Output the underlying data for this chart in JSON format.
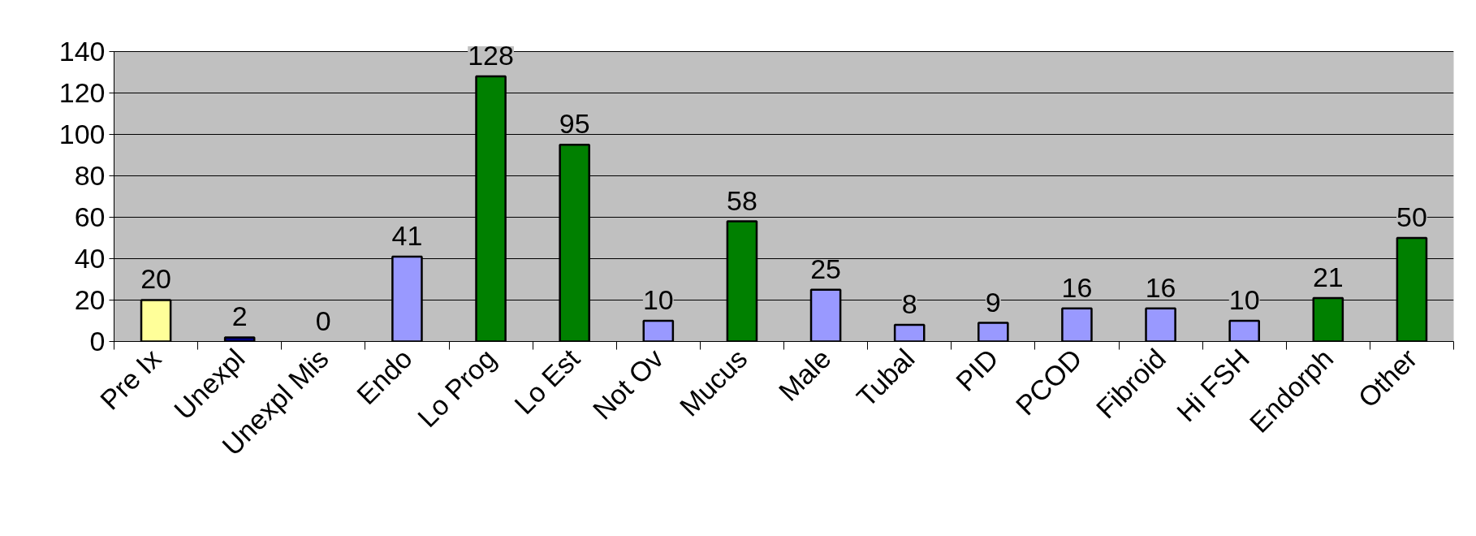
{
  "chart_data": {
    "type": "bar",
    "categories": [
      "Pre Ix",
      "Unexpl",
      "Unexpl Mis",
      "Endo",
      "Lo Prog",
      "Lo Est",
      "Not Ov",
      "Mucus",
      "Male",
      "Tubal",
      "PID",
      "PCOD",
      "Fibroid",
      "Hi FSH",
      "Endorph",
      "Other"
    ],
    "values": [
      20,
      2,
      0,
      41,
      128,
      95,
      10,
      58,
      25,
      8,
      9,
      16,
      16,
      10,
      21,
      50
    ],
    "colors": [
      "#ffff99",
      "#000080",
      "#9999ff",
      "#9999ff",
      "#008000",
      "#008000",
      "#9999ff",
      "#008000",
      "#9999ff",
      "#9999ff",
      "#9999ff",
      "#9999ff",
      "#9999ff",
      "#9999ff",
      "#008000",
      "#008000"
    ],
    "ylim": [
      0,
      140
    ],
    "yticks": [
      0,
      20,
      40,
      60,
      80,
      100,
      120,
      140
    ],
    "grid": "y",
    "data_labels": true
  }
}
